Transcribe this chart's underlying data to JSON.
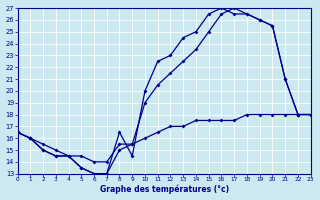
{
  "title": "",
  "xlabel": "Graphe des températures (°c)",
  "bg_color": "#cce8f0",
  "line_color": "#00008b",
  "grid_color": "#ffffff",
  "x_ticks": [
    0,
    1,
    2,
    3,
    4,
    5,
    6,
    7,
    8,
    9,
    10,
    11,
    12,
    13,
    14,
    15,
    16,
    17,
    18,
    19,
    20,
    21,
    22,
    23
  ],
  "y_ticks": [
    13,
    14,
    15,
    16,
    17,
    18,
    19,
    20,
    21,
    22,
    23,
    24,
    25,
    26,
    27
  ],
  "xlim": [
    0,
    23
  ],
  "ylim": [
    13,
    27
  ],
  "line1_x": [
    0,
    1,
    2,
    3,
    4,
    5,
    6,
    7,
    8,
    9,
    10,
    11,
    12,
    13,
    14,
    15,
    16,
    17,
    18,
    19,
    20,
    21,
    22,
    23
  ],
  "line1_y": [
    16.5,
    16.0,
    15.0,
    14.5,
    14.5,
    13.5,
    13.0,
    13.0,
    16.5,
    14.5,
    20.0,
    22.5,
    23.0,
    24.5,
    25.0,
    26.5,
    27.0,
    26.5,
    26.5,
    26.0,
    25.5,
    21.0,
    18.0,
    18.0
  ],
  "line2_x": [
    0,
    1,
    2,
    3,
    4,
    5,
    6,
    7,
    8,
    9,
    10,
    11,
    12,
    13,
    14,
    15,
    16,
    17,
    18,
    19,
    20,
    21,
    22,
    23
  ],
  "line2_y": [
    16.5,
    16.0,
    15.0,
    14.5,
    14.5,
    13.5,
    13.0,
    13.0,
    15.0,
    15.5,
    19.0,
    20.5,
    21.5,
    22.5,
    23.5,
    25.0,
    26.5,
    27.0,
    26.5,
    26.0,
    25.5,
    21.0,
    18.0,
    18.0
  ],
  "line3_x": [
    0,
    1,
    2,
    3,
    4,
    5,
    6,
    7,
    8,
    9,
    10,
    11,
    12,
    13,
    14,
    15,
    16,
    17,
    18,
    19,
    20,
    21,
    22,
    23
  ],
  "line3_y": [
    16.5,
    16.0,
    15.5,
    15.0,
    14.5,
    14.5,
    14.0,
    14.0,
    15.5,
    15.5,
    16.0,
    16.5,
    17.0,
    17.0,
    17.5,
    17.5,
    17.5,
    17.5,
    18.0,
    18.0,
    18.0,
    18.0,
    18.0,
    18.0
  ]
}
